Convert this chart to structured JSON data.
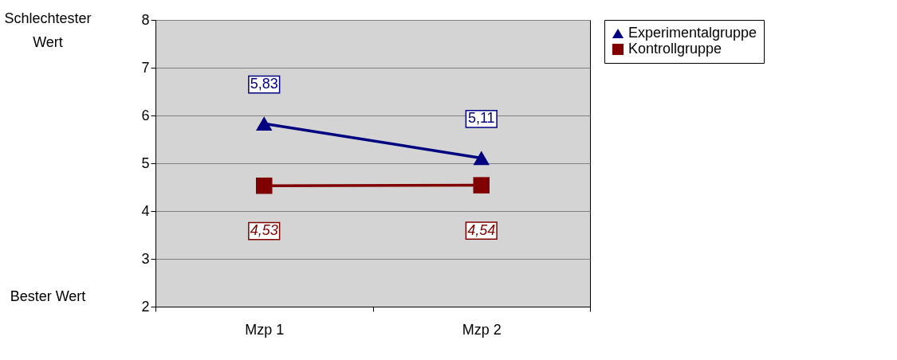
{
  "chart_data": {
    "type": "line",
    "categories": [
      "Mzp 1",
      "Mzp 2"
    ],
    "series": [
      {
        "name": "Experimentalgruppe",
        "color": "#000080",
        "marker": "triangle",
        "values": [
          5.83,
          5.11
        ],
        "value_labels": [
          "5,83",
          "5,11"
        ]
      },
      {
        "name": "Kontrollgruppe",
        "color": "#800000",
        "marker": "square",
        "values": [
          4.53,
          4.54
        ],
        "value_labels": [
          "4,53",
          "4,54"
        ]
      }
    ],
    "ylim": [
      2,
      8
    ],
    "yticks": [
      2,
      3,
      4,
      5,
      6,
      7,
      8
    ],
    "grid": "y",
    "legend": "right",
    "annotations": [
      "Schlechtester Wert",
      "Bester Wert"
    ]
  }
}
